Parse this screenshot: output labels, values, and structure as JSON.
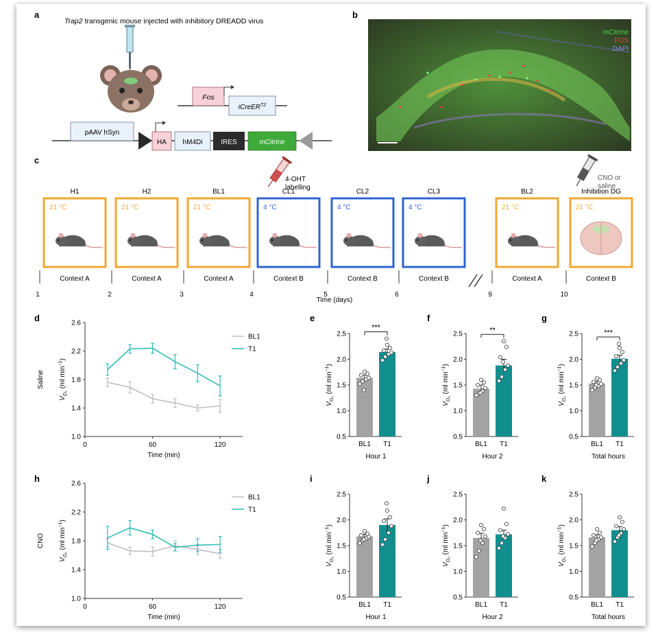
{
  "panel_letters": [
    "a",
    "b",
    "c",
    "d",
    "e",
    "f",
    "g",
    "h",
    "i",
    "j",
    "k"
  ],
  "panel_a": {
    "title_italic": "Trap2",
    "title_rest": " transgenic mouse injected with inhibitory DREADD virus",
    "fos": "Fos",
    "icreer_main": "iCreER",
    "icreer_sup": "T2",
    "paav": "pAAV hSyn",
    "ha": "HA",
    "hm4di": "hM4Di",
    "ires": "IRES",
    "mcitrine": "mCitrine"
  },
  "panel_b": {
    "legend": [
      "mCitrine",
      "FOS",
      "DAPI"
    ],
    "legend_colors": [
      "#4bd64b",
      "#e0443a",
      "#8c8cf0"
    ]
  },
  "panel_c": {
    "ohtlabel": [
      "4-OHT",
      "labelling"
    ],
    "cno_label": [
      "CNO or",
      "saline"
    ],
    "sessions": [
      {
        "name": "H1",
        "temp": "21 °C",
        "context": "Context A",
        "day": "1"
      },
      {
        "name": "H2",
        "temp": "21 °C",
        "context": "Context A",
        "day": "2"
      },
      {
        "name": "BL1",
        "temp": "21 °C",
        "context": "Context A",
        "day": "3"
      },
      {
        "name": "CL1",
        "temp": "4 °C",
        "context": "Context B",
        "day": "4"
      },
      {
        "name": "CL2",
        "temp": "4 °C",
        "context": "Context B",
        "day": "5"
      },
      {
        "name": "CL3",
        "temp": "4 °C",
        "context": "Context B",
        "day": "6"
      },
      {
        "name": "BL2",
        "temp": "21 °C",
        "context": "Context A",
        "day": "9"
      },
      {
        "name": "Inhibition DG",
        "temp": "21 °C",
        "context": "Context B",
        "day": "10"
      }
    ],
    "xlabel": "Time (days)",
    "colors": {
      "warm": "#f0a830",
      "cold": "#2e63d4"
    }
  },
  "line_ylabel_main": "V",
  "line_ylabel_sub": "O₂",
  "line_ylabel_unit": " (ml min",
  "bar_ylabel_unit": " (ml min",
  "colors": {
    "bl1": "#bdbdbd",
    "t1": "#2fbcb6",
    "bar_bl1": "#a3a3a3",
    "bar_t1": "#118f8f"
  },
  "chart_data": [
    {
      "panel": "d",
      "type": "line",
      "row_label": "Saline",
      "x": [
        20,
        40,
        60,
        80,
        100,
        120
      ],
      "series": [
        {
          "name": "BL1",
          "values": [
            1.76,
            1.69,
            1.53,
            1.47,
            1.4,
            1.43
          ],
          "err": [
            0.06,
            0.08,
            0.06,
            0.06,
            0.04,
            0.09
          ]
        },
        {
          "name": "T1",
          "values": [
            1.94,
            2.23,
            2.24,
            2.05,
            1.89,
            1.71
          ],
          "err": [
            0.08,
            0.06,
            0.07,
            0.1,
            0.12,
            0.14
          ]
        }
      ],
      "xlim": [
        0,
        140
      ],
      "ylim": [
        1.0,
        2.6
      ],
      "xticks": [
        "0",
        "60",
        "120"
      ],
      "yticks": [
        "1.0",
        "1.4",
        "1.8",
        "2.2",
        "2.6"
      ],
      "xlabel": "Time (min)"
    },
    {
      "panel": "h",
      "type": "line",
      "row_label": "CNO",
      "x": [
        20,
        40,
        60,
        80,
        100,
        120
      ],
      "series": [
        {
          "name": "BL1",
          "values": [
            1.77,
            1.66,
            1.65,
            1.73,
            1.68,
            1.62
          ],
          "err": [
            0.06,
            0.05,
            0.06,
            0.07,
            0.07,
            0.06
          ]
        },
        {
          "name": "T1",
          "values": [
            1.84,
            1.98,
            1.89,
            1.71,
            1.74,
            1.75
          ],
          "err": [
            0.16,
            0.1,
            0.06,
            0.05,
            0.09,
            0.11
          ]
        }
      ],
      "xlim": [
        0,
        140
      ],
      "ylim": [
        1.0,
        2.6
      ],
      "xticks": [
        "0",
        "60",
        "120"
      ],
      "yticks": [
        "1.0",
        "1.4",
        "1.8",
        "2.2",
        "2.6"
      ],
      "xlabel": "Time (min)"
    },
    {
      "panel": "e",
      "type": "bar",
      "categories": [
        "BL1",
        "T1"
      ],
      "values": [
        1.64,
        2.14
      ],
      "err": [
        0.05,
        0.06
      ],
      "points": [
        [
          1.52,
          1.57,
          1.61,
          1.64,
          1.69,
          1.72,
          1.76,
          1.4
        ],
        [
          1.98,
          2.05,
          2.1,
          2.13,
          2.17,
          2.22,
          2.28,
          2.4
        ]
      ],
      "sig": "***",
      "ylim": [
        0.5,
        2.5
      ],
      "yticks": [
        "0.5",
        "1.0",
        "1.5",
        "2.0",
        "2.5"
      ],
      "xlabel": "Hour 1"
    },
    {
      "panel": "f",
      "type": "bar",
      "categories": [
        "BL1",
        "T1"
      ],
      "values": [
        1.43,
        1.88
      ],
      "err": [
        0.07,
        0.12
      ],
      "points": [
        [
          1.3,
          1.34,
          1.38,
          1.44,
          1.5,
          1.55,
          1.6,
          1.35
        ],
        [
          1.58,
          1.66,
          1.8,
          1.88,
          2.04,
          2.24,
          2.35,
          1.95
        ]
      ],
      "sig": "**",
      "ylim": [
        0.5,
        2.5
      ],
      "yticks": [
        "0.5",
        "1.0",
        "1.5",
        "2.0",
        "2.5"
      ],
      "xlabel": "Hour 2"
    },
    {
      "panel": "g",
      "type": "bar",
      "categories": [
        "BL1",
        "T1"
      ],
      "values": [
        1.53,
        2.01
      ],
      "err": [
        0.04,
        0.07
      ],
      "points": [
        [
          1.4,
          1.45,
          1.48,
          1.52,
          1.56,
          1.6,
          1.63,
          1.5
        ],
        [
          1.78,
          1.85,
          1.92,
          1.98,
          2.06,
          2.14,
          2.22,
          2.3
        ]
      ],
      "sig": "***",
      "ylim": [
        0.5,
        2.5
      ],
      "yticks": [
        "0.5",
        "1.0",
        "1.5",
        "2.0",
        "2.5"
      ],
      "xlabel": "Total hours"
    },
    {
      "panel": "i",
      "type": "bar",
      "categories": [
        "BL1",
        "T1"
      ],
      "values": [
        1.68,
        1.9
      ],
      "err": [
        0.04,
        0.12
      ],
      "points": [
        [
          1.55,
          1.6,
          1.64,
          1.67,
          1.7,
          1.73,
          1.78,
          1.62
        ],
        [
          1.52,
          1.62,
          1.75,
          1.88,
          1.98,
          2.05,
          2.18,
          2.32
        ]
      ],
      "sig": "",
      "ylim": [
        0.5,
        2.5
      ],
      "yticks": [
        "0.5",
        "1.0",
        "1.5",
        "2.0",
        "2.5"
      ],
      "xlabel": "Hour 1"
    },
    {
      "panel": "j",
      "type": "bar",
      "categories": [
        "BL1",
        "T1"
      ],
      "values": [
        1.65,
        1.72
      ],
      "err": [
        0.09,
        0.08
      ],
      "points": [
        [
          1.28,
          1.4,
          1.55,
          1.68,
          1.75,
          1.82,
          1.9,
          1.6
        ],
        [
          1.45,
          1.55,
          1.65,
          1.72,
          1.8,
          1.92,
          2.22,
          1.68
        ]
      ],
      "sig": "",
      "ylim": [
        0.5,
        2.5
      ],
      "yticks": [
        "0.5",
        "1.0",
        "1.5",
        "2.0",
        "2.5"
      ],
      "xlabel": "Hour 2"
    },
    {
      "panel": "k",
      "type": "bar",
      "categories": [
        "BL1",
        "T1"
      ],
      "values": [
        1.66,
        1.8
      ],
      "err": [
        0.05,
        0.07
      ],
      "points": [
        [
          1.48,
          1.55,
          1.62,
          1.66,
          1.7,
          1.75,
          1.82,
          1.6
        ],
        [
          1.58,
          1.66,
          1.74,
          1.82,
          1.88,
          1.96,
          2.05,
          1.7
        ]
      ],
      "sig": "",
      "ylim": [
        0.5,
        2.5
      ],
      "yticks": [
        "0.5",
        "1.0",
        "1.5",
        "2.0",
        "2.5"
      ],
      "xlabel": "Total hours"
    }
  ]
}
